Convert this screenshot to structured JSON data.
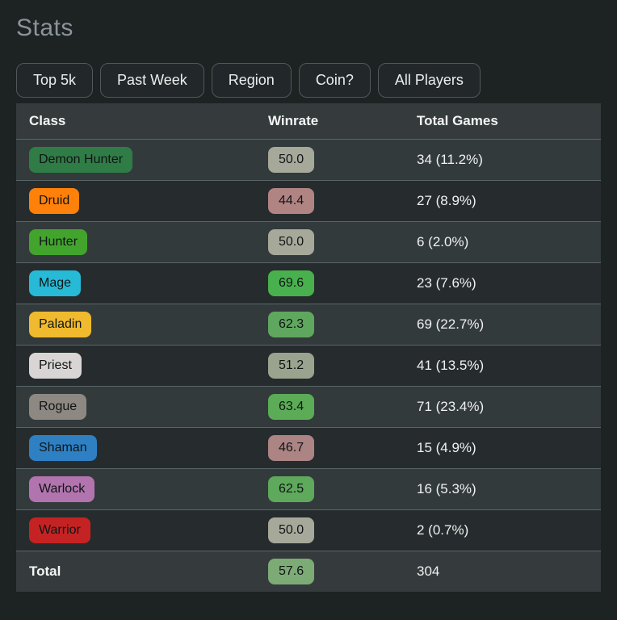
{
  "page": {
    "title": "Stats"
  },
  "filters": [
    {
      "label": "Top 5k"
    },
    {
      "label": "Past Week"
    },
    {
      "label": "Region"
    },
    {
      "label": "Coin?"
    },
    {
      "label": "All Players"
    }
  ],
  "table": {
    "columns": {
      "class": "Class",
      "winrate": "Winrate",
      "total_games": "Total Games"
    },
    "rows": [
      {
        "class": "Demon Hunter",
        "class_color": "#307c46",
        "winrate": "50.0",
        "winrate_color": "#a6a99a",
        "total_games": "34 (11.2%)"
      },
      {
        "class": "Druid",
        "class_color": "#ff8109",
        "winrate": "44.4",
        "winrate_color": "#b18484",
        "total_games": "27 (8.9%)"
      },
      {
        "class": "Hunter",
        "class_color": "#42a42d",
        "winrate": "50.0",
        "winrate_color": "#a6a99a",
        "total_games": "6 (2.0%)"
      },
      {
        "class": "Mage",
        "class_color": "#26bad7",
        "winrate": "69.6",
        "winrate_color": "#48b14d",
        "total_games": "23 (7.6%)"
      },
      {
        "class": "Paladin",
        "class_color": "#f0ba2e",
        "winrate": "62.3",
        "winrate_color": "#5fa75e",
        "total_games": "69 (22.7%)"
      },
      {
        "class": "Priest",
        "class_color": "#d8d5d4",
        "winrate": "51.2",
        "winrate_color": "#9aa38d",
        "total_games": "41 (13.5%)"
      },
      {
        "class": "Rogue",
        "class_color": "#8d8881",
        "winrate": "63.4",
        "winrate_color": "#5cac57",
        "total_games": "71 (23.4%)"
      },
      {
        "class": "Shaman",
        "class_color": "#2f80c3",
        "winrate": "46.7",
        "winrate_color": "#ac8484",
        "total_games": "15 (4.9%)"
      },
      {
        "class": "Warlock",
        "class_color": "#b274ae",
        "winrate": "62.5",
        "winrate_color": "#5ea95c",
        "total_games": "16 (5.3%)"
      },
      {
        "class": "Warrior",
        "class_color": "#c52323",
        "winrate": "50.0",
        "winrate_color": "#a6a99a",
        "total_games": "2 (0.7%)"
      }
    ],
    "total": {
      "label": "Total",
      "winrate": "57.6",
      "winrate_color": "#7dab76",
      "total_games": "304"
    }
  }
}
